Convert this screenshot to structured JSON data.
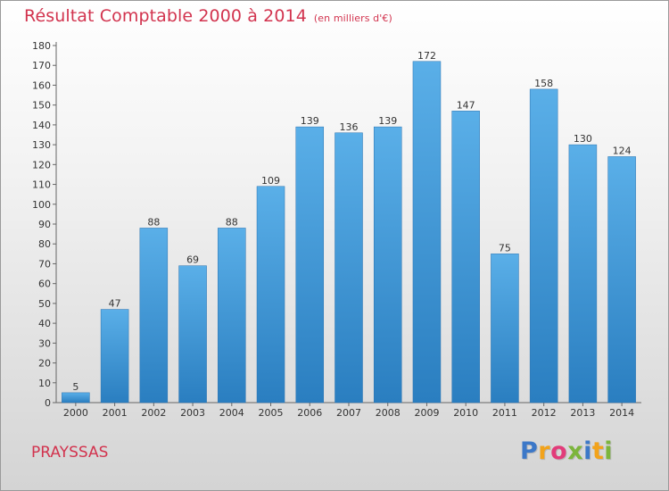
{
  "header": {
    "title": "Résultat Comptable 2000 à 2014",
    "subtitle": "(en milliers d'€)"
  },
  "commune": "PRAYSSAS",
  "logo": {
    "letters": [
      "P",
      "r",
      "o",
      "x",
      "i",
      "t",
      "i"
    ],
    "colors": [
      "#3c78c8",
      "#f2a31b",
      "#e23c7a",
      "#7cb53c",
      "#3c78c8",
      "#f2a31b",
      "#7cb53c"
    ]
  },
  "colors": {
    "accent": "#d2334e",
    "bar_top": "#5aafe8",
    "bar_bottom": "#2a7ec0"
  },
  "chart_data": {
    "type": "bar",
    "categories": [
      "2000",
      "2001",
      "2002",
      "2003",
      "2004",
      "2005",
      "2006",
      "2007",
      "2008",
      "2009",
      "2010",
      "2011",
      "2012",
      "2013",
      "2014"
    ],
    "values": [
      5,
      47,
      88,
      69,
      88,
      109,
      139,
      136,
      139,
      172,
      147,
      75,
      158,
      130,
      124
    ],
    "title": "Résultat Comptable 2000 à 2014",
    "subtitle": "(en milliers d'€)",
    "ylim": [
      0,
      180
    ],
    "yticks": [
      0,
      10,
      20,
      30,
      40,
      50,
      60,
      70,
      80,
      90,
      100,
      110,
      120,
      130,
      140,
      150,
      160,
      170,
      180
    ],
    "grid": false,
    "legend": "none"
  }
}
